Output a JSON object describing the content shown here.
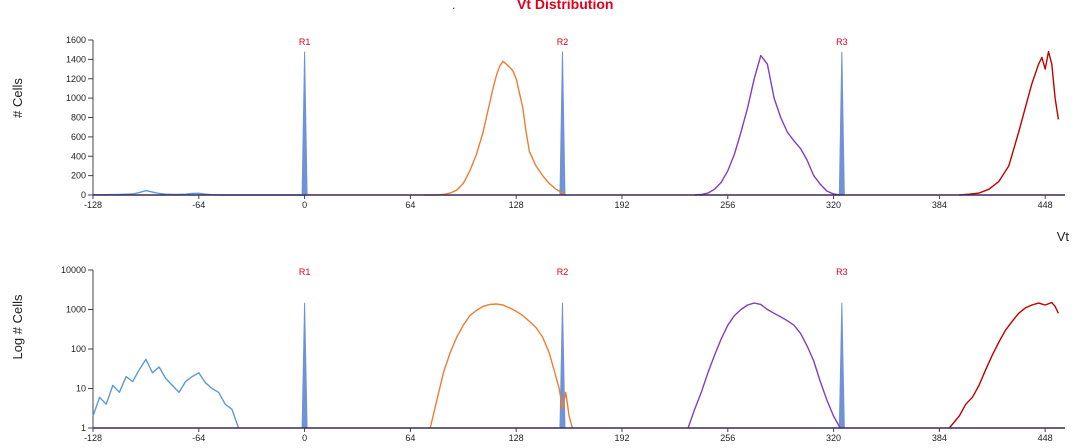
{
  "header": {
    "dot": ".",
    "title": "Vt Distribution"
  },
  "chart_data": [
    {
      "type": "line",
      "title": "Vt Distribution",
      "ylabel": "# Cells",
      "xlabel": "Vt",
      "xlim": [
        -128,
        460
      ],
      "ylim": [
        0,
        1600
      ],
      "xticks": [
        -128,
        -64,
        0,
        64,
        128,
        192,
        256,
        320,
        384,
        448
      ],
      "yticks": [
        0,
        200,
        400,
        600,
        800,
        1000,
        1200,
        1400,
        1600
      ],
      "markers": [
        {
          "label": "R1",
          "x": 0,
          "peak": 1480
        },
        {
          "label": "R2",
          "x": 156,
          "peak": 1480
        },
        {
          "label": "R3",
          "x": 325,
          "peak": 1480
        }
      ],
      "series": [
        {
          "color": "#5b9bd5",
          "x": [
            -128,
            -120,
            -112,
            -104,
            -100,
            -96,
            -92,
            -88,
            -84,
            -80,
            -76,
            -72,
            -68,
            -64,
            -60,
            -56,
            -50,
            0
          ],
          "y": [
            2,
            3,
            5,
            10,
            25,
            45,
            30,
            15,
            8,
            5,
            6,
            8,
            15,
            18,
            8,
            3,
            0,
            0
          ]
        },
        {
          "color": "#ed7d31",
          "x": [
            72,
            80,
            84,
            88,
            92,
            96,
            100,
            104,
            108,
            110,
            112,
            114,
            116,
            118,
            120,
            122,
            124,
            126,
            128,
            130,
            132,
            134,
            136,
            140,
            144,
            148,
            152,
            156,
            158
          ],
          "y": [
            0,
            0,
            5,
            20,
            50,
            120,
            250,
            420,
            650,
            800,
            950,
            1100,
            1230,
            1330,
            1380,
            1350,
            1320,
            1280,
            1200,
            1050,
            900,
            650,
            450,
            300,
            200,
            120,
            60,
            20,
            0
          ]
        },
        {
          "color": "#7f3fbf",
          "x": [
            236,
            240,
            244,
            248,
            252,
            256,
            260,
            264,
            268,
            272,
            276,
            280,
            284,
            288,
            292,
            296,
            300,
            304,
            308,
            312,
            316,
            320,
            324
          ],
          "y": [
            0,
            5,
            20,
            60,
            130,
            250,
            420,
            650,
            900,
            1200,
            1440,
            1350,
            1000,
            800,
            650,
            560,
            480,
            360,
            200,
            110,
            40,
            10,
            0
          ]
        },
        {
          "color": "#c00000",
          "x": [
            396,
            402,
            408,
            414,
            420,
            426,
            432,
            436,
            440,
            444,
            446,
            448,
            450,
            452,
            454,
            456
          ],
          "y": [
            0,
            8,
            20,
            60,
            140,
            300,
            650,
            900,
            1150,
            1350,
            1420,
            1300,
            1480,
            1350,
            1000,
            780
          ]
        }
      ]
    },
    {
      "type": "line",
      "ylabel": "Log # Cells",
      "xlim": [
        -128,
        460
      ],
      "yscale": "log",
      "ylim": [
        1,
        10000
      ],
      "xticks": [
        -128,
        -64,
        0,
        64,
        128,
        192,
        256,
        320,
        384,
        448
      ],
      "yticks": [
        1,
        10,
        100,
        1000,
        10000
      ],
      "markers": [
        {
          "label": "R1",
          "x": 0,
          "peak": 1480
        },
        {
          "label": "R2",
          "x": 156,
          "peak": 1480
        },
        {
          "label": "R3",
          "x": 325,
          "peak": 1480
        }
      ],
      "series": [
        {
          "color": "#5b9bd5",
          "x": [
            -128,
            -124,
            -120,
            -116,
            -112,
            -108,
            -104,
            -100,
            -96,
            -92,
            -88,
            -84,
            -80,
            -76,
            -72,
            -68,
            -64,
            -60,
            -56,
            -52,
            -48,
            -44,
            -40
          ],
          "y": [
            2,
            6,
            4,
            12,
            8,
            20,
            15,
            30,
            55,
            25,
            35,
            18,
            12,
            8,
            15,
            20,
            25,
            14,
            10,
            8,
            4,
            3,
            1
          ]
        },
        {
          "color": "#ed7d31",
          "x": [
            76,
            80,
            84,
            88,
            92,
            96,
            100,
            104,
            108,
            112,
            116,
            120,
            124,
            128,
            132,
            136,
            140,
            144,
            148,
            152,
            154,
            156,
            158,
            160,
            162
          ],
          "y": [
            1,
            5,
            25,
            80,
            200,
            400,
            700,
            950,
            1200,
            1350,
            1380,
            1300,
            1100,
            900,
            700,
            500,
            350,
            200,
            80,
            20,
            10,
            3,
            8,
            2,
            1
          ]
        },
        {
          "color": "#7f3fbf",
          "x": [
            232,
            236,
            240,
            244,
            248,
            252,
            256,
            260,
            264,
            268,
            272,
            276,
            280,
            284,
            288,
            292,
            296,
            300,
            304,
            308,
            312,
            316,
            320,
            324
          ],
          "y": [
            1,
            3,
            8,
            25,
            70,
            180,
            400,
            700,
            1000,
            1300,
            1450,
            1350,
            1000,
            800,
            650,
            520,
            400,
            250,
            120,
            50,
            15,
            5,
            2,
            1
          ]
        },
        {
          "color": "#c00000",
          "x": [
            390,
            396,
            400,
            404,
            408,
            412,
            416,
            420,
            424,
            428,
            432,
            436,
            440,
            444,
            448,
            452,
            454,
            456
          ],
          "y": [
            1,
            2,
            4,
            6,
            12,
            30,
            70,
            150,
            300,
            500,
            800,
            1100,
            1300,
            1450,
            1300,
            1500,
            1200,
            800
          ]
        }
      ]
    }
  ]
}
